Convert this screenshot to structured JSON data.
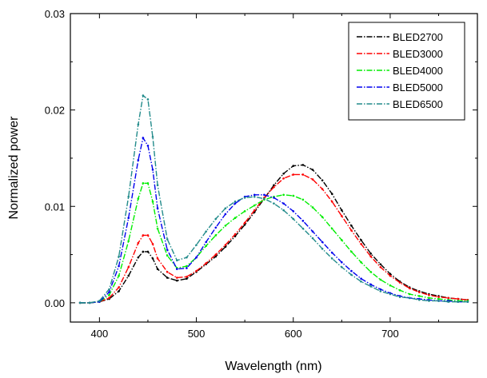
{
  "chart_data": {
    "type": "line",
    "title": "",
    "xlabel": "Wavelength (nm)",
    "ylabel": "Normalized power",
    "xlim": [
      370,
      790
    ],
    "ylim": [
      -0.002,
      0.03
    ],
    "x_ticks": [
      400,
      500,
      600,
      700
    ],
    "x_tick_labels": [
      "400",
      "500",
      "600",
      "700"
    ],
    "y_ticks": [
      0.0,
      0.01,
      0.02,
      0.03
    ],
    "y_tick_labels": [
      "0.00",
      "0.01",
      "0.02",
      "0.03"
    ],
    "grid": false,
    "legend_position": "top-right",
    "x": [
      380,
      390,
      400,
      410,
      420,
      430,
      440,
      445,
      450,
      455,
      460,
      470,
      480,
      490,
      500,
      510,
      520,
      530,
      540,
      550,
      560,
      570,
      580,
      590,
      600,
      610,
      620,
      630,
      640,
      650,
      660,
      670,
      680,
      690,
      700,
      710,
      720,
      730,
      740,
      750,
      760,
      770,
      780
    ],
    "series": [
      {
        "name": "BLED2700",
        "color": "#000000",
        "dash": "dash-dot",
        "values": [
          0.0,
          0.0,
          0.0001,
          0.0004,
          0.0012,
          0.0028,
          0.0047,
          0.0053,
          0.0053,
          0.0046,
          0.0035,
          0.0026,
          0.0023,
          0.0025,
          0.0032,
          0.004,
          0.0048,
          0.0058,
          0.0069,
          0.0081,
          0.0094,
          0.0108,
          0.0122,
          0.0134,
          0.0142,
          0.0143,
          0.0138,
          0.0127,
          0.0113,
          0.0096,
          0.008,
          0.0065,
          0.0051,
          0.004,
          0.003,
          0.0022,
          0.0016,
          0.0012,
          0.0009,
          0.0007,
          0.0005,
          0.0004,
          0.0003
        ]
      },
      {
        "name": "BLED3000",
        "color": "#ff0000",
        "dash": "dash-dot",
        "values": [
          0.0,
          0.0,
          0.0001,
          0.0005,
          0.0016,
          0.0037,
          0.0062,
          0.007,
          0.007,
          0.0061,
          0.0046,
          0.0032,
          0.0026,
          0.0027,
          0.0033,
          0.0041,
          0.005,
          0.006,
          0.0071,
          0.0083,
          0.0096,
          0.0109,
          0.012,
          0.0129,
          0.0133,
          0.0133,
          0.0128,
          0.0118,
          0.0105,
          0.009,
          0.0075,
          0.0061,
          0.0048,
          0.0037,
          0.0028,
          0.0021,
          0.0015,
          0.0011,
          0.0008,
          0.0006,
          0.0005,
          0.0004,
          0.0003
        ]
      },
      {
        "name": "BLED4000",
        "color": "#00ee00",
        "dash": "dash-dot",
        "values": [
          0.0,
          0.0,
          0.0001,
          0.0008,
          0.0028,
          0.0064,
          0.0108,
          0.0124,
          0.0124,
          0.0105,
          0.0077,
          0.0049,
          0.0036,
          0.0038,
          0.0047,
          0.0059,
          0.007,
          0.008,
          0.0088,
          0.0095,
          0.0101,
          0.0107,
          0.011,
          0.0112,
          0.0111,
          0.0107,
          0.0099,
          0.0089,
          0.0077,
          0.0065,
          0.0053,
          0.0042,
          0.0032,
          0.0024,
          0.0018,
          0.0013,
          0.0009,
          0.0007,
          0.0005,
          0.0004,
          0.0003,
          0.0002,
          0.0002
        ]
      },
      {
        "name": "BLED5000",
        "color": "#0000ee",
        "dash": "dash-dot",
        "values": [
          0.0,
          0.0,
          0.0001,
          0.0011,
          0.0038,
          0.0088,
          0.0148,
          0.0171,
          0.0163,
          0.0138,
          0.0098,
          0.0055,
          0.0035,
          0.0036,
          0.0047,
          0.0063,
          0.0078,
          0.0092,
          0.0103,
          0.011,
          0.0112,
          0.0112,
          0.0109,
          0.0103,
          0.0095,
          0.0085,
          0.0074,
          0.0063,
          0.0052,
          0.0042,
          0.0033,
          0.0025,
          0.0019,
          0.0014,
          0.001,
          0.0007,
          0.0005,
          0.0004,
          0.0003,
          0.0002,
          0.0002,
          0.0001,
          0.0001
        ]
      },
      {
        "name": "BLED6500",
        "color": "#228b8b",
        "dash": "dash-dot",
        "values": [
          0.0,
          0.0,
          0.0002,
          0.0014,
          0.0048,
          0.011,
          0.0185,
          0.0215,
          0.0211,
          0.0172,
          0.0122,
          0.0066,
          0.0044,
          0.0047,
          0.006,
          0.0074,
          0.0087,
          0.0098,
          0.0105,
          0.0109,
          0.011,
          0.0108,
          0.0103,
          0.0096,
          0.0087,
          0.0077,
          0.0067,
          0.0056,
          0.0046,
          0.0037,
          0.0029,
          0.0022,
          0.0017,
          0.0012,
          0.0009,
          0.0006,
          0.0005,
          0.0003,
          0.0002,
          0.0002,
          0.0001,
          0.0001,
          0.0001
        ]
      }
    ]
  }
}
